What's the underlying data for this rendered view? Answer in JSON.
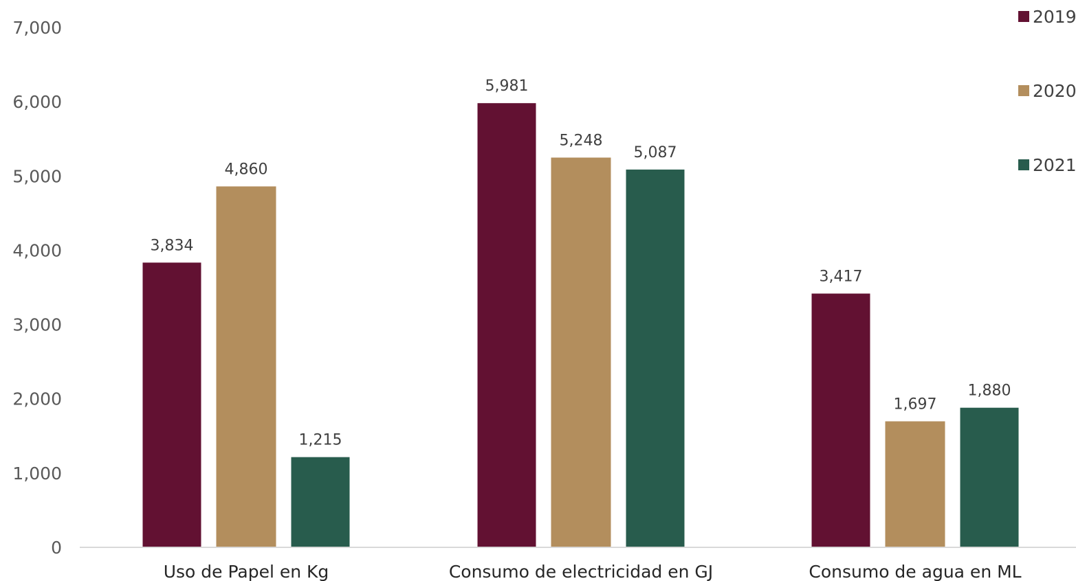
{
  "chart_data": {
    "type": "bar",
    "categories": [
      "Uso de Papel en Kg",
      "Consumo de electricidad en GJ",
      "Consumo de agua en ML"
    ],
    "series": [
      {
        "name": "2019",
        "color": "#621132",
        "values": [
          3834,
          5981,
          3417
        ],
        "labels": [
          "3,834",
          "5,981",
          "3,417"
        ]
      },
      {
        "name": "2020",
        "color": "#B38E5D",
        "values": [
          4860,
          5248,
          1697
        ],
        "labels": [
          "4,860",
          "5,248",
          "1,697"
        ]
      },
      {
        "name": "2021",
        "color": "#285C4D",
        "values": [
          1215,
          5087,
          1880
        ],
        "labels": [
          "1,215",
          "5,087",
          "1,880"
        ]
      }
    ],
    "yticks": [
      0,
      1000,
      2000,
      3000,
      4000,
      5000,
      6000,
      7000
    ],
    "ytick_labels": [
      "0",
      "1,000",
      "2,000",
      "3,000",
      "4,000",
      "5,000",
      "6,000",
      "7,000"
    ],
    "ylim": [
      0,
      7000
    ],
    "title": "",
    "xlabel": "",
    "ylabel": "",
    "grid": false,
    "legend_position": "top-right"
  }
}
